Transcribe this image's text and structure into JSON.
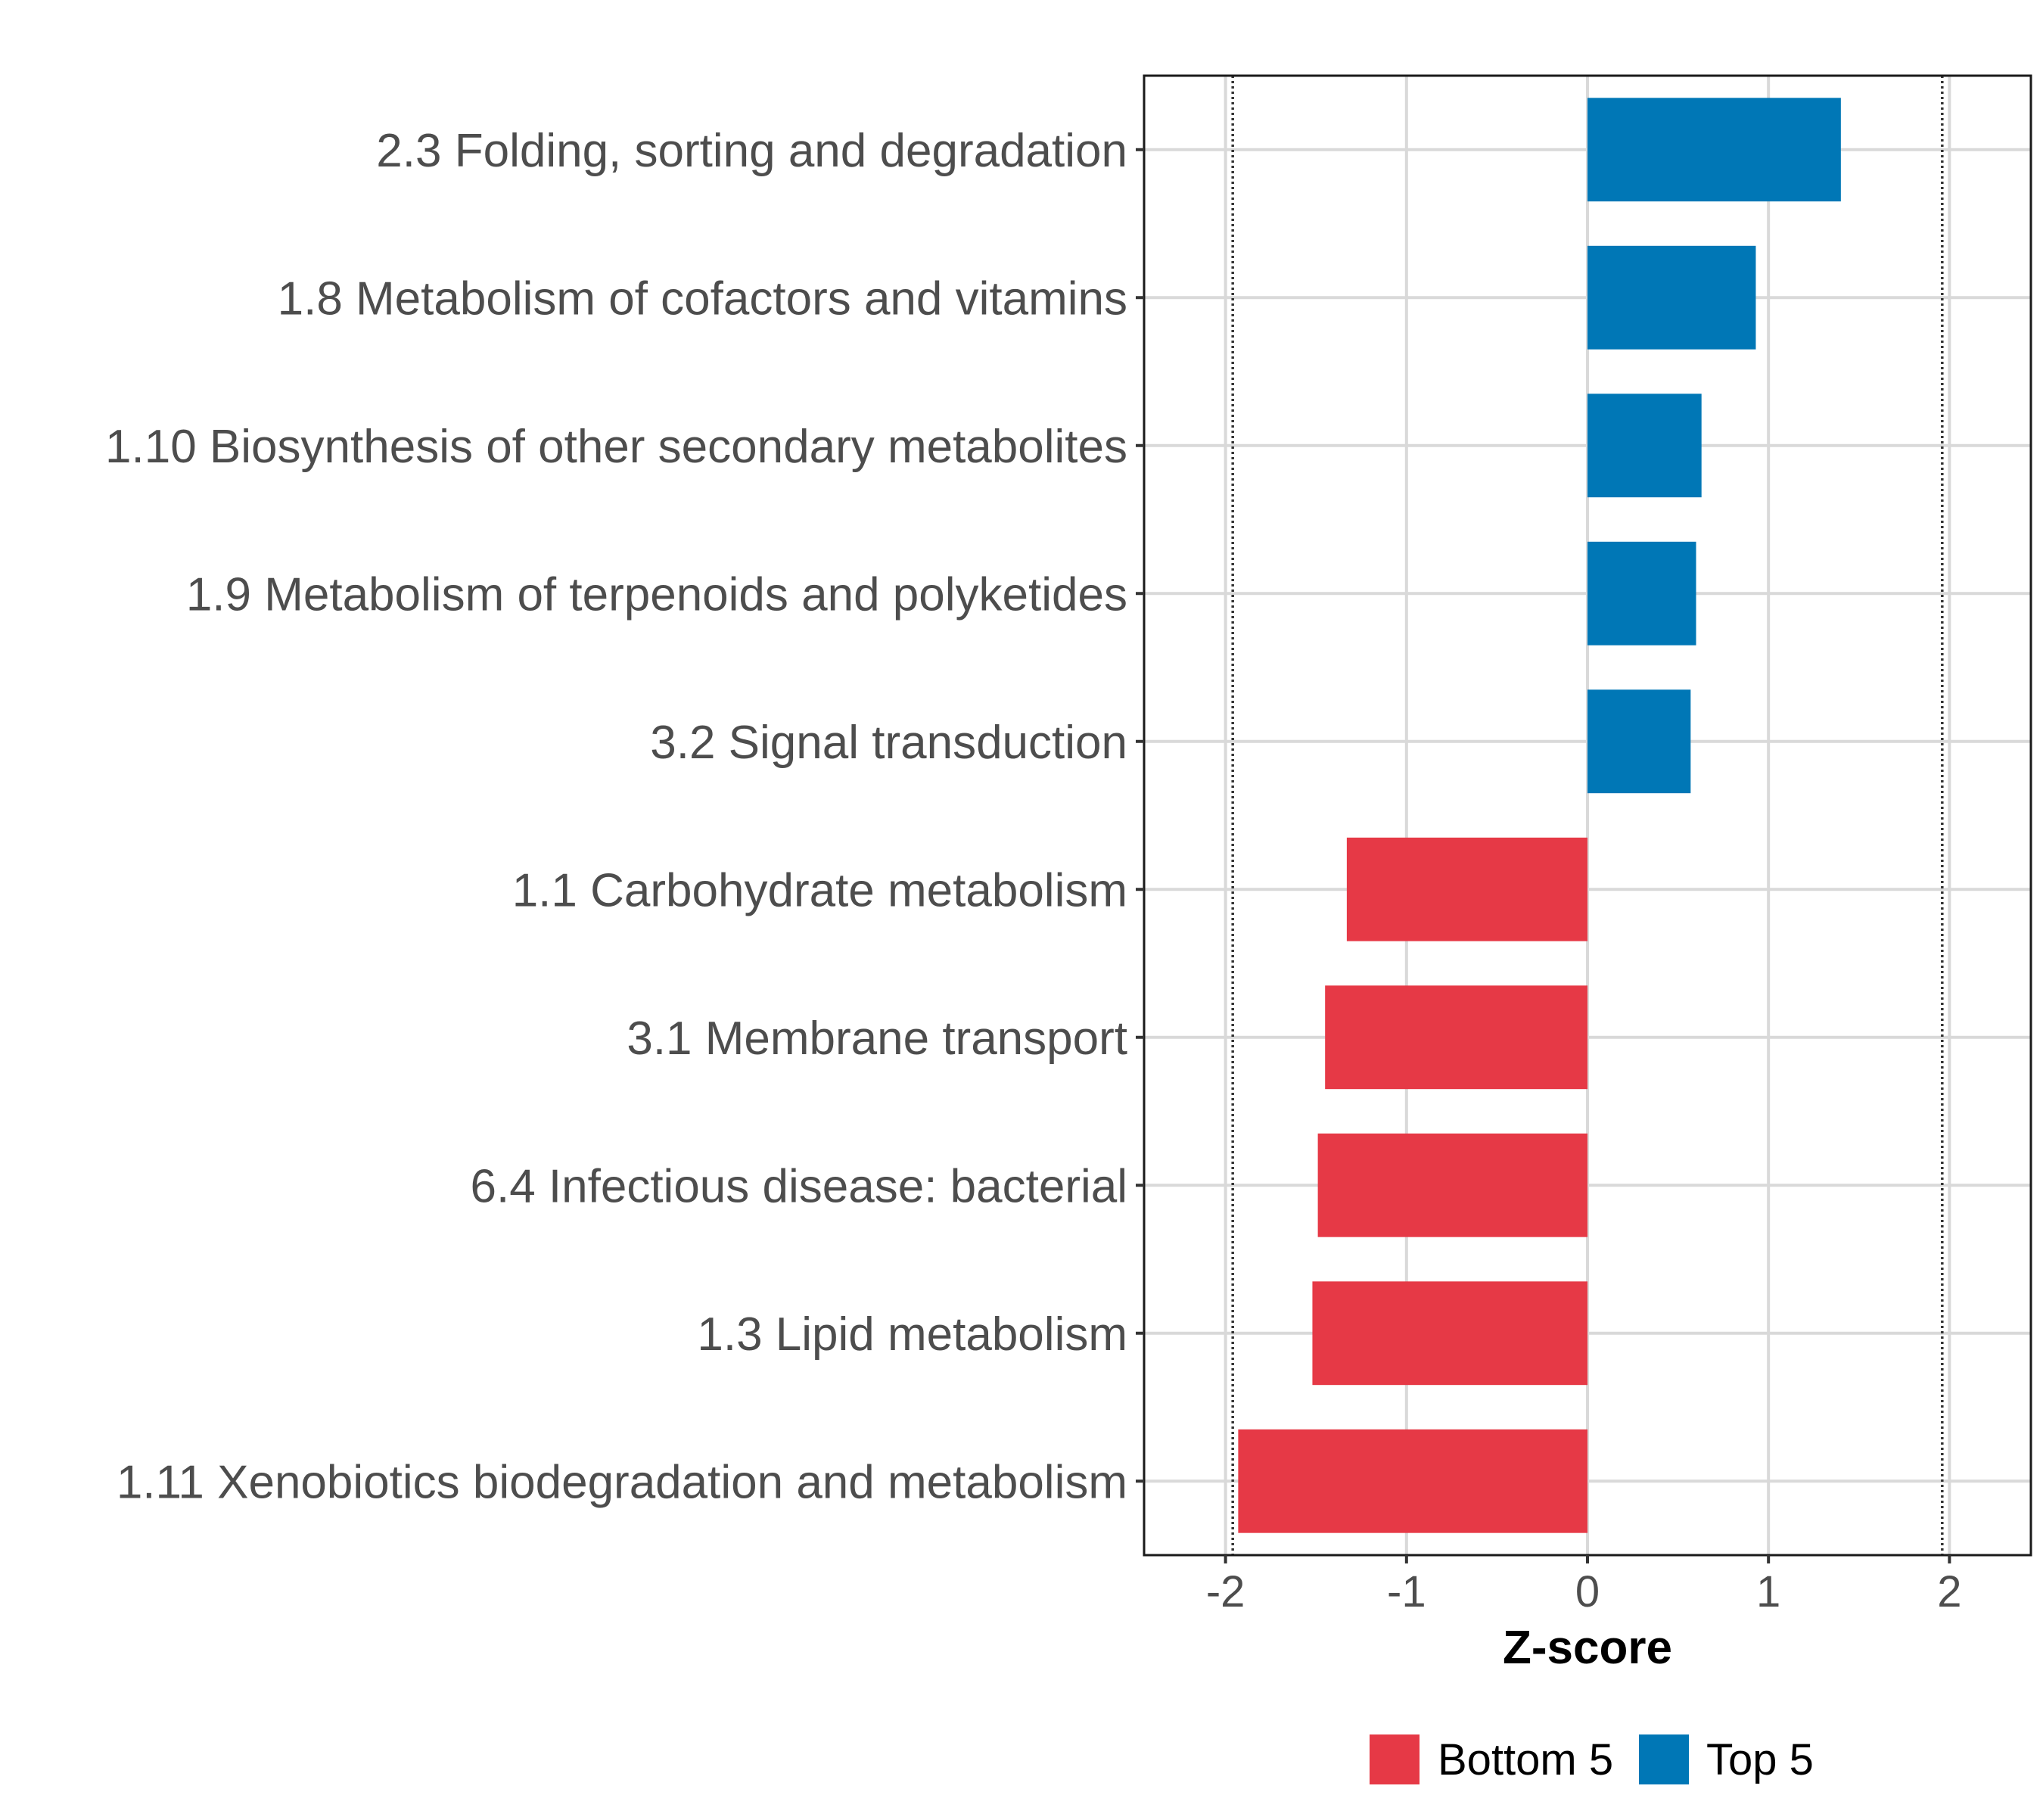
{
  "chart_data": {
    "type": "bar",
    "orientation": "horizontal",
    "title": "",
    "xlabel": "Z-score",
    "ylabel": "",
    "xlim": [
      -2.45,
      2.45
    ],
    "x_ticks": [
      -2,
      -1,
      0,
      1,
      2
    ],
    "x_tick_labels": [
      "-2",
      "-1",
      "0",
      "1",
      "2"
    ],
    "reference_lines": [
      -1.96,
      1.96
    ],
    "grid": true,
    "legend_position": "bottom",
    "categories": [
      "2.3 Folding, sorting and degradation",
      "1.8 Metabolism of cofactors and vitamins",
      "1.10 Biosynthesis of other secondary metabolites",
      "1.9 Metabolism of terpenoids and polyketides",
      "3.2 Signal transduction",
      "1.1 Carbohydrate metabolism",
      "3.1 Membrane transport",
      "6.4 Infectious disease: bacterial",
      "1.3 Lipid metabolism",
      "1.11 Xenobiotics biodegradation and metabolism"
    ],
    "values": [
      1.4,
      0.93,
      0.63,
      0.6,
      0.57,
      -1.33,
      -1.45,
      -1.49,
      -1.52,
      -1.93
    ],
    "groups": [
      "Top 5",
      "Top 5",
      "Top 5",
      "Top 5",
      "Top 5",
      "Bottom 5",
      "Bottom 5",
      "Bottom 5",
      "Bottom 5",
      "Bottom 5"
    ],
    "legend": [
      {
        "name": "Bottom 5",
        "color": "#E63946"
      },
      {
        "name": "Top 5",
        "color": "#0077B6"
      }
    ]
  }
}
